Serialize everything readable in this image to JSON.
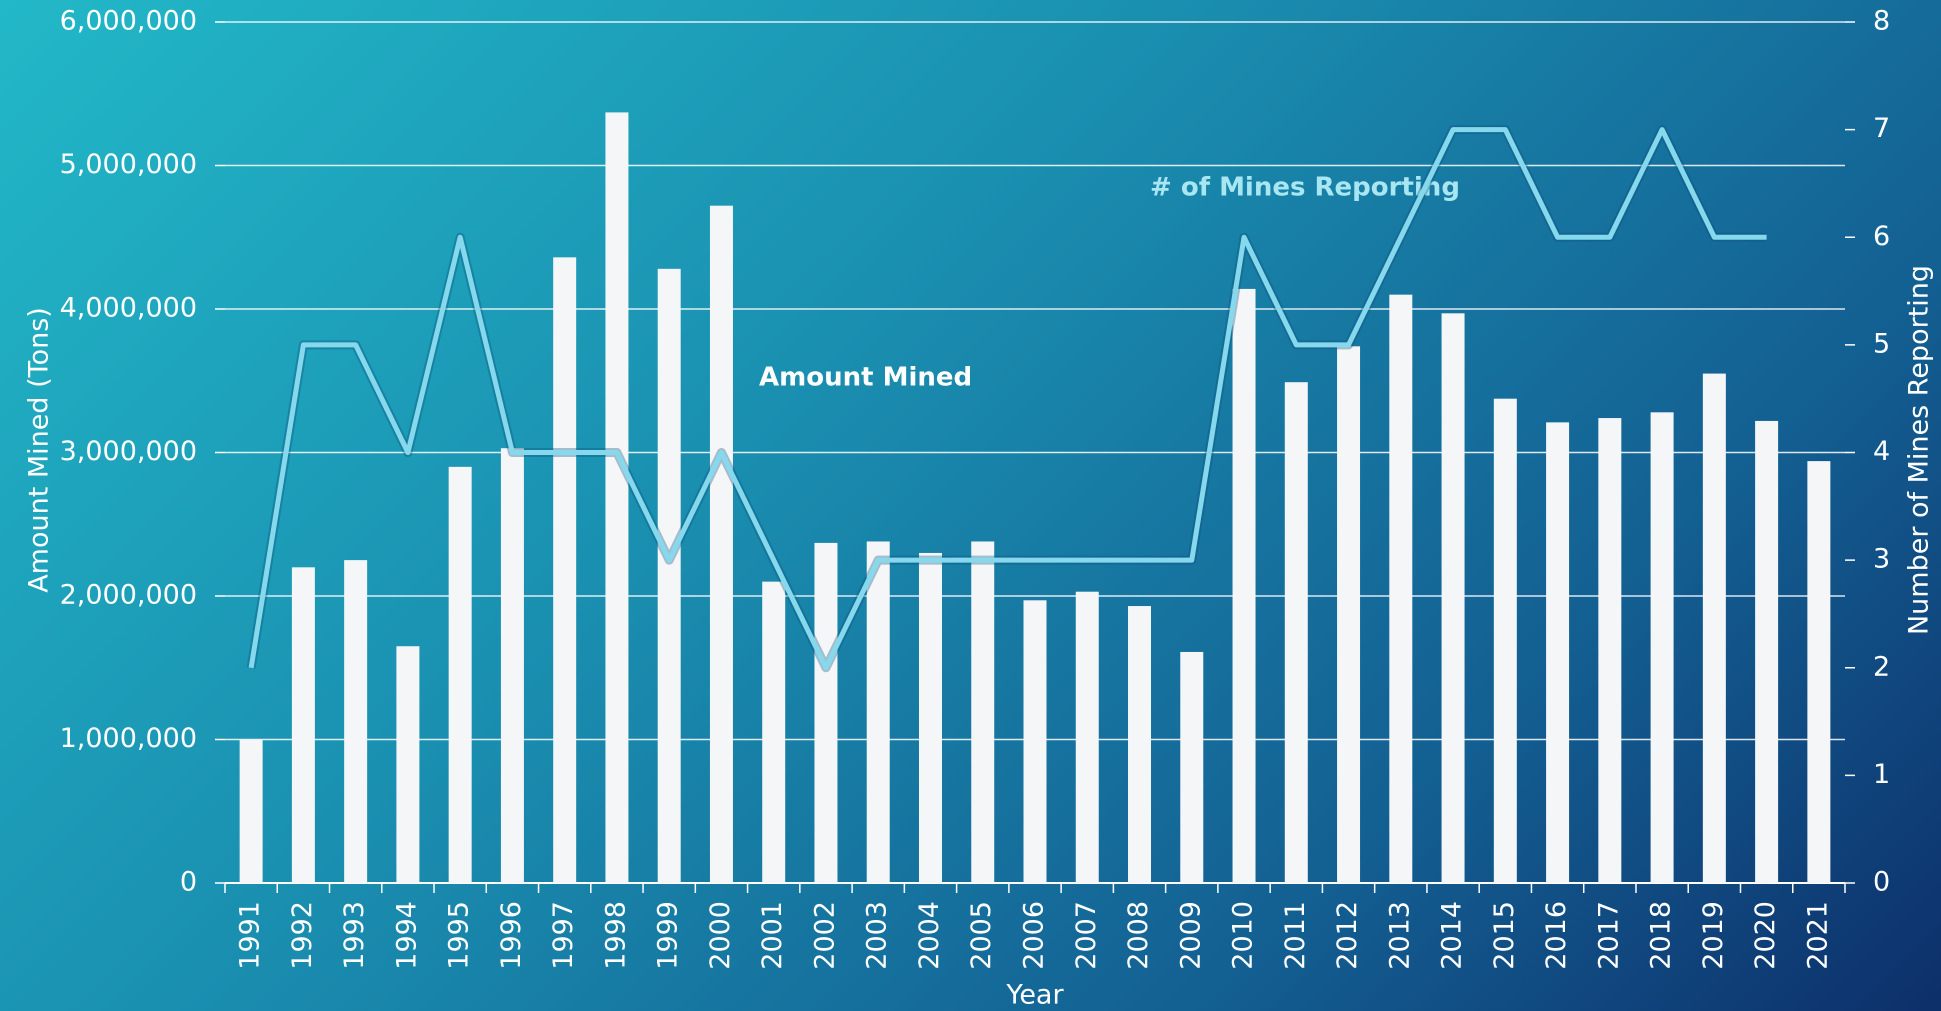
{
  "chart_data": {
    "type": "bar-line",
    "categories": [
      "1991",
      "1992",
      "1993",
      "1994",
      "1995",
      "1996",
      "1997",
      "1998",
      "1999",
      "2000",
      "2001",
      "2002",
      "2003",
      "2004",
      "2005",
      "2006",
      "2007",
      "2008",
      "2009",
      "2010",
      "2011",
      "2012",
      "2013",
      "2014",
      "2015",
      "2016",
      "2017",
      "2018",
      "2019",
      "2020",
      "2021"
    ],
    "series": [
      {
        "name": "Amount Mined",
        "type": "bar",
        "color": "#f4f6f8",
        "values": [
          1000000,
          2200000,
          2250000,
          1650000,
          2900000,
          3030000,
          4360000,
          5370000,
          4280000,
          4720000,
          2100000,
          2370000,
          2380000,
          2300000,
          2380000,
          1970000,
          2030000,
          1930000,
          1610000,
          4140000,
          3490000,
          3740000,
          4100000,
          3970000,
          3375000,
          3210000,
          3240000,
          3280000,
          3550000,
          3220000,
          2940000
        ]
      },
      {
        "name": "# of Mines Reporting",
        "type": "line",
        "axis": "y2",
        "color": "#86d9ec",
        "values": [
          2,
          5,
          5,
          4,
          6,
          4,
          4,
          4,
          3,
          4,
          3,
          2,
          3,
          3,
          3,
          3,
          3,
          3,
          3,
          6,
          5,
          5,
          6,
          7,
          7,
          6,
          6,
          7,
          6,
          6,
          null
        ]
      }
    ],
    "x_label": "Year",
    "y_label": "Amount Mined (Tons)",
    "y2_label": "Number of Mines Reporting",
    "ylim": [
      0,
      6000000
    ],
    "yticks": [
      0,
      {
        "value": 1000000,
        "label": "1,000,000"
      },
      {
        "value": 2000000,
        "label": "2,000,000"
      },
      {
        "value": 3000000,
        "label": "3,000,000"
      },
      {
        "value": 4000000,
        "label": "4,000,000"
      },
      {
        "value": 5000000,
        "label": "5,000,000"
      },
      {
        "value": 6000000,
        "label": "6,000,000"
      }
    ],
    "y2lim": [
      0,
      8
    ],
    "y2ticks": [
      0,
      1,
      2,
      3,
      4,
      5,
      6,
      7,
      8
    ],
    "grid": true
  }
}
